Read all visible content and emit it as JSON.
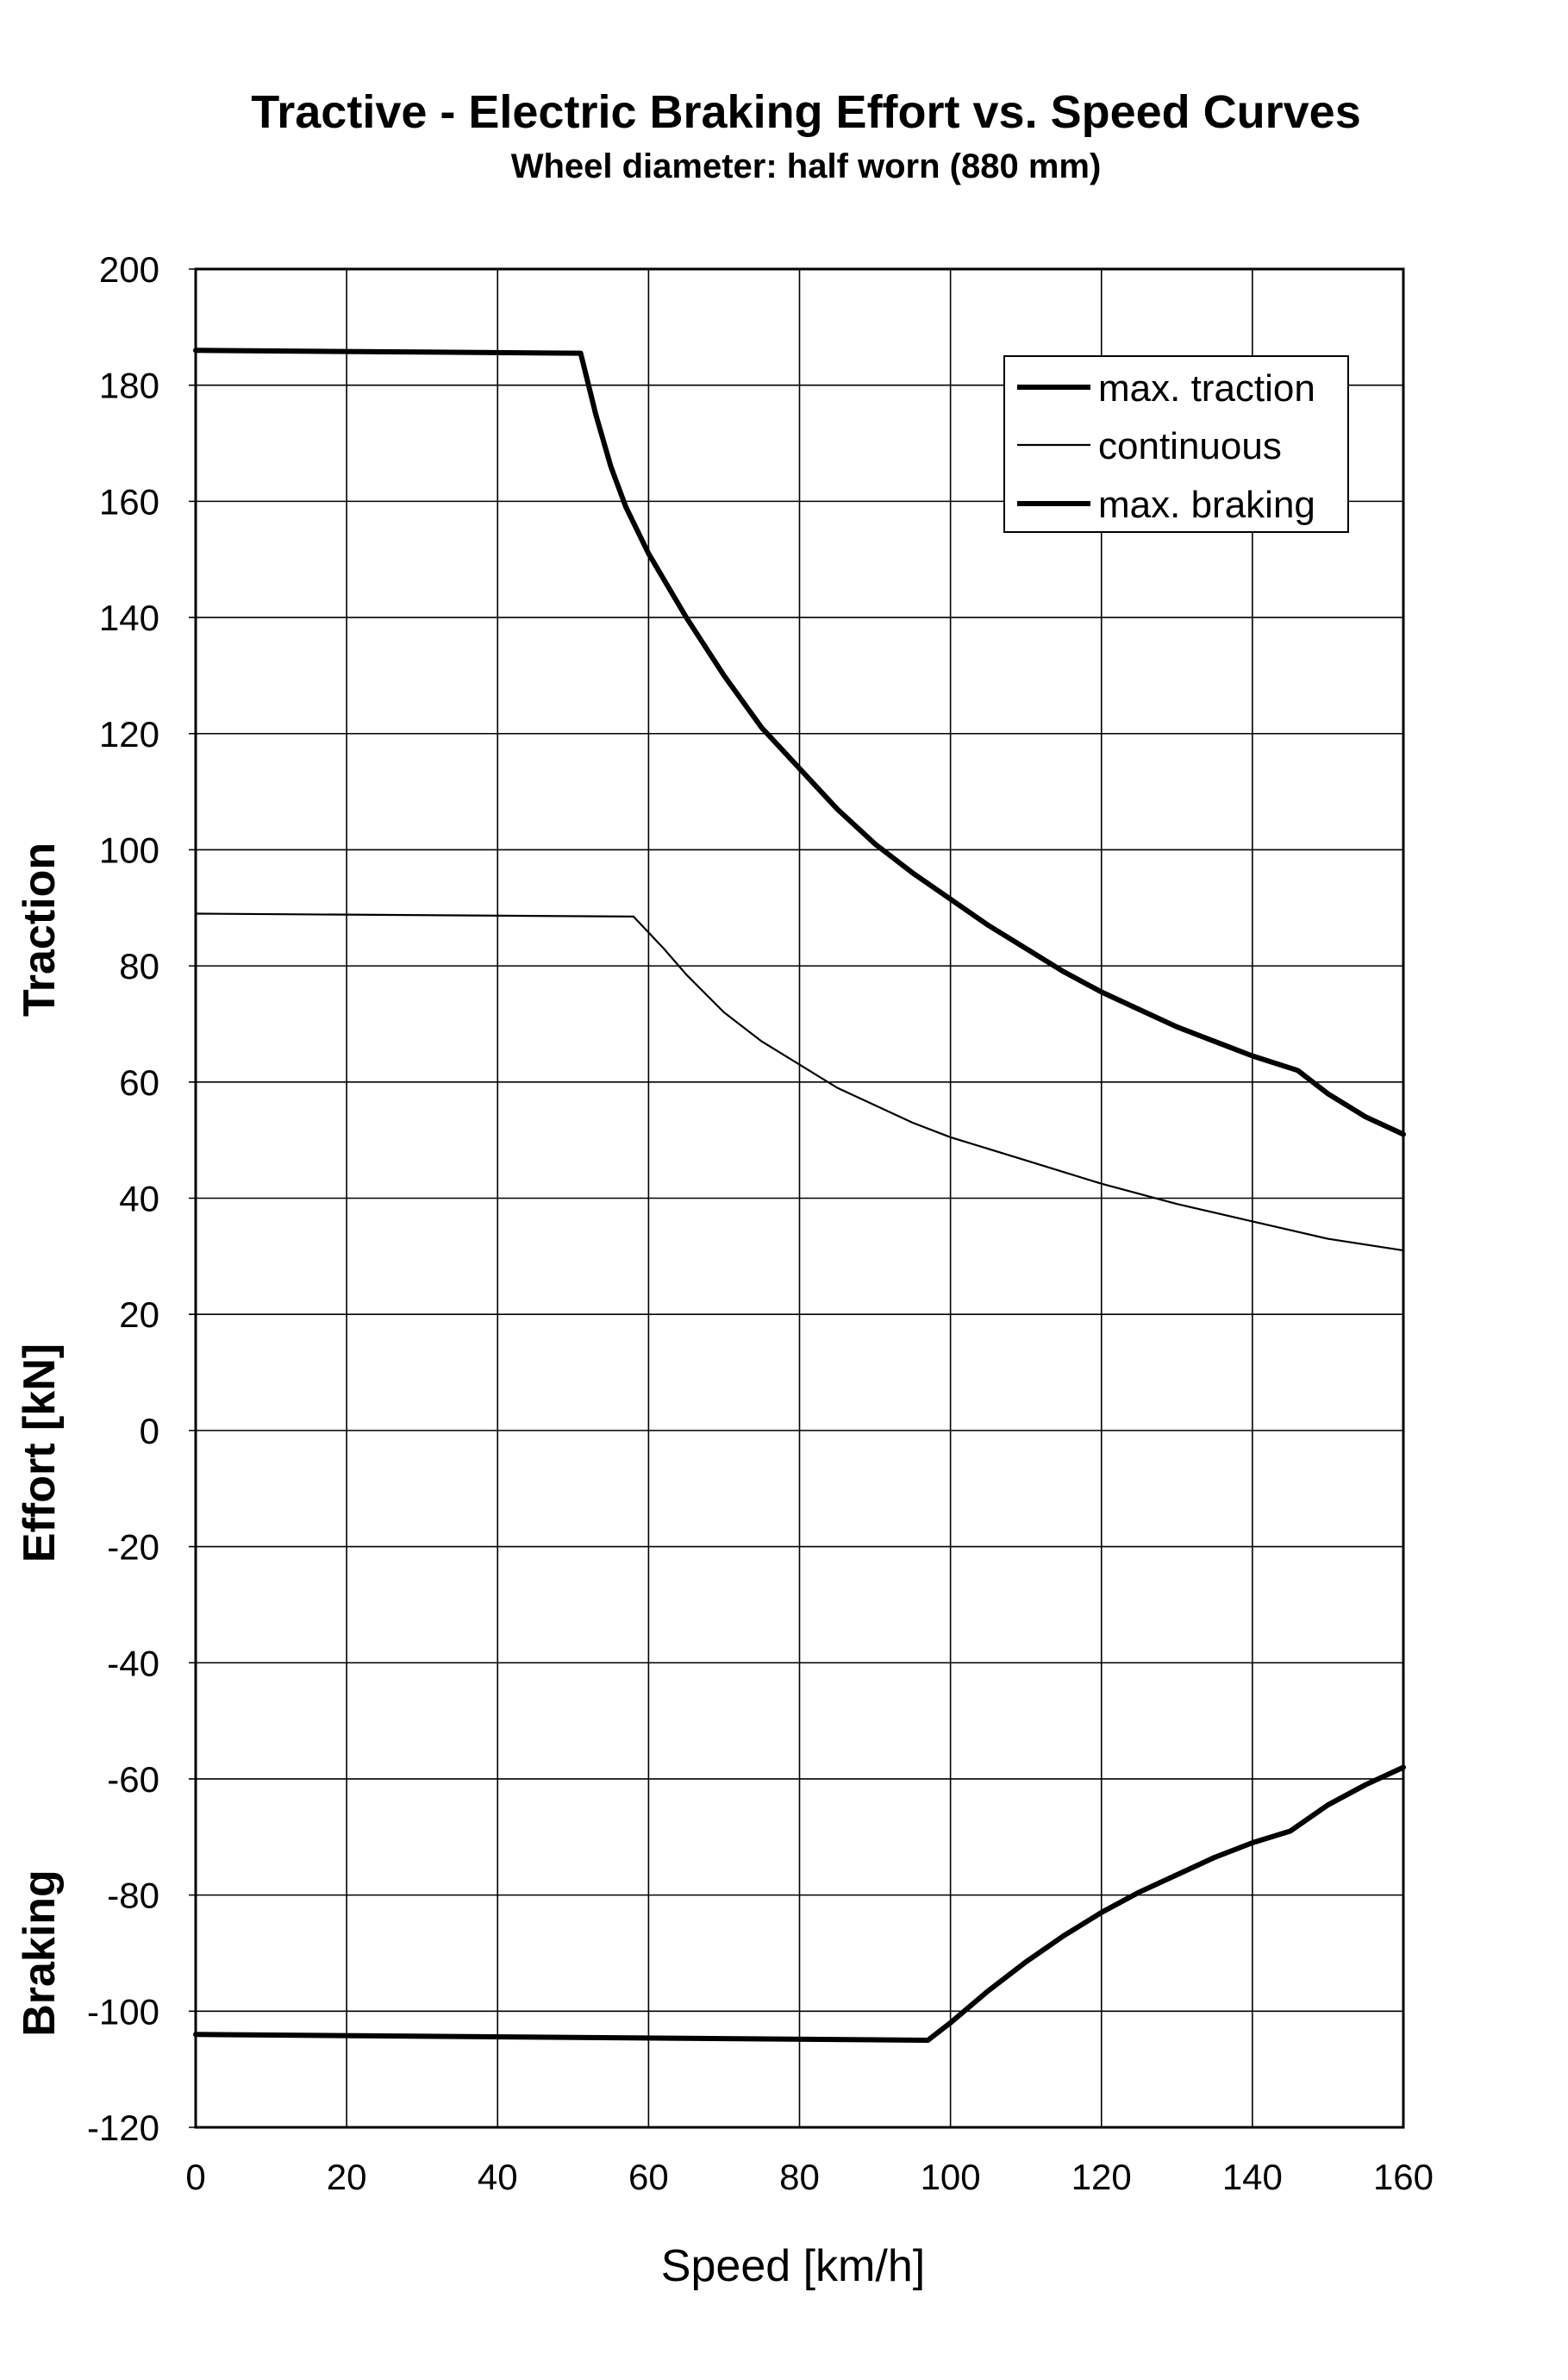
{
  "chart_data": {
    "type": "line",
    "title": "Tractive - Electric Braking Effort vs. Speed Curves",
    "subtitle": "Wheel diameter: half worn (880 mm)",
    "xlabel": "Speed [km/h]",
    "ylabel_parts": [
      "Traction",
      "Effort [kN]",
      "Braking"
    ],
    "xlim": [
      0,
      160
    ],
    "ylim": [
      -120,
      200
    ],
    "x_ticks": [
      0,
      20,
      40,
      60,
      80,
      100,
      120,
      140,
      160
    ],
    "y_ticks": [
      200,
      180,
      160,
      140,
      120,
      100,
      80,
      60,
      40,
      20,
      0,
      -20,
      -40,
      -60,
      -80,
      -100,
      -120
    ],
    "grid": true,
    "legend_position": "top-right",
    "series": [
      {
        "name": "max. traction",
        "line_weight": "thick",
        "color": "#000000",
        "points": [
          [
            0,
            186
          ],
          [
            51,
            185.5
          ],
          [
            53,
            175
          ],
          [
            55,
            166
          ],
          [
            57,
            159
          ],
          [
            60,
            151
          ],
          [
            65,
            140
          ],
          [
            70,
            130
          ],
          [
            75,
            121
          ],
          [
            80,
            114
          ],
          [
            85,
            107
          ],
          [
            90,
            101
          ],
          [
            95,
            96
          ],
          [
            100,
            91.5
          ],
          [
            105,
            87
          ],
          [
            110,
            83
          ],
          [
            115,
            79
          ],
          [
            120,
            75.5
          ],
          [
            125,
            72.5
          ],
          [
            130,
            69.5
          ],
          [
            135,
            67
          ],
          [
            140,
            64.5
          ],
          [
            146,
            62
          ],
          [
            150,
            58
          ],
          [
            155,
            54
          ],
          [
            160,
            51
          ]
        ]
      },
      {
        "name": "continuous",
        "line_weight": "thin",
        "color": "#000000",
        "points": [
          [
            0,
            89
          ],
          [
            58,
            88.5
          ],
          [
            62,
            83
          ],
          [
            65,
            78.5
          ],
          [
            70,
            72
          ],
          [
            75,
            67
          ],
          [
            80,
            63
          ],
          [
            85,
            59
          ],
          [
            90,
            56
          ],
          [
            95,
            53
          ],
          [
            100,
            50.5
          ],
          [
            110,
            46.5
          ],
          [
            120,
            42.5
          ],
          [
            130,
            39
          ],
          [
            140,
            36
          ],
          [
            150,
            33
          ],
          [
            160,
            31
          ]
        ]
      },
      {
        "name": "max. braking",
        "line_weight": "thick",
        "color": "#000000",
        "points": [
          [
            0,
            -104
          ],
          [
            97,
            -105
          ],
          [
            100,
            -102
          ],
          [
            105,
            -96.5
          ],
          [
            110,
            -91.5
          ],
          [
            115,
            -87
          ],
          [
            120,
            -83
          ],
          [
            125,
            -79.5
          ],
          [
            130,
            -76.5
          ],
          [
            135,
            -73.5
          ],
          [
            140,
            -71
          ],
          [
            145,
            -69
          ],
          [
            150,
            -64.5
          ],
          [
            155,
            -61
          ],
          [
            160,
            -58
          ]
        ]
      }
    ]
  }
}
